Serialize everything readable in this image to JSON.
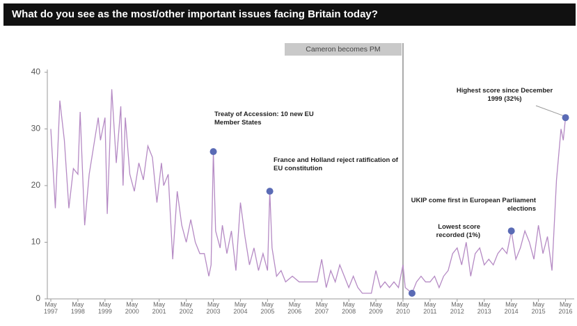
{
  "chart_data": {
    "type": "line",
    "title": "What do you see as the most/other important issues facing Britain today?",
    "x": [
      "1997-05",
      "1997-07",
      "1997-09",
      "1997-11",
      "1998-01",
      "1998-03",
      "1998-05",
      "1998-06",
      "1998-08",
      "1998-10",
      "1998-12",
      "1999-02",
      "1999-03",
      "1999-05",
      "1999-06",
      "1999-08",
      "1999-10",
      "1999-12",
      "2000-01",
      "2000-02",
      "2000-04",
      "2000-06",
      "2000-08",
      "2000-10",
      "2000-12",
      "2001-02",
      "2001-04",
      "2001-06",
      "2001-07",
      "2001-09",
      "2001-11",
      "2002-01",
      "2002-03",
      "2002-05",
      "2002-07",
      "2002-09",
      "2002-11",
      "2003-01",
      "2003-03",
      "2003-04",
      "2003-05",
      "2003-06",
      "2003-08",
      "2003-09",
      "2003-11",
      "2004-01",
      "2004-03",
      "2004-05",
      "2004-07",
      "2004-09",
      "2004-11",
      "2005-01",
      "2005-03",
      "2005-05",
      "2005-06",
      "2005-07",
      "2005-09",
      "2005-11",
      "2006-01",
      "2006-04",
      "2006-07",
      "2006-10",
      "2007-01",
      "2007-03",
      "2007-05",
      "2007-07",
      "2007-09",
      "2007-11",
      "2008-01",
      "2008-03",
      "2008-05",
      "2008-07",
      "2008-09",
      "2008-11",
      "2009-01",
      "2009-03",
      "2009-05",
      "2009-07",
      "2009-09",
      "2009-11",
      "2010-01",
      "2010-03",
      "2010-05",
      "2010-06",
      "2010-09",
      "2010-11",
      "2011-01",
      "2011-03",
      "2011-05",
      "2011-07",
      "2011-09",
      "2011-11",
      "2012-01",
      "2012-03",
      "2012-05",
      "2012-07",
      "2012-09",
      "2012-11",
      "2013-01",
      "2013-03",
      "2013-05",
      "2013-07",
      "2013-09",
      "2013-11",
      "2014-01",
      "2014-03",
      "2014-05",
      "2014-07",
      "2014-09",
      "2014-11",
      "2015-01",
      "2015-03",
      "2015-05",
      "2015-07",
      "2015-09",
      "2015-11",
      "2016-01",
      "2016-03",
      "2016-04",
      "2016-05"
    ],
    "series": [
      {
        "color": "#b58ac4",
        "values": [
          30,
          16,
          35,
          28,
          16,
          23,
          22,
          33,
          13,
          22,
          27,
          32,
          28,
          32,
          15,
          37,
          24,
          34,
          20,
          32,
          22,
          19,
          24,
          21,
          27,
          25,
          17,
          24,
          20,
          22,
          7,
          19,
          13,
          10,
          14,
          10,
          8,
          8,
          4,
          6,
          26,
          12,
          9,
          13,
          8,
          12,
          5,
          17,
          11,
          6,
          9,
          5,
          8,
          5,
          19,
          9,
          4,
          5,
          3,
          4,
          3,
          3,
          3,
          3,
          7,
          2,
          5,
          3,
          6,
          4,
          2,
          4,
          2,
          1,
          1,
          1,
          5,
          2,
          3,
          2,
          3,
          2,
          6,
          2,
          1,
          3,
          4,
          3,
          3,
          4,
          2,
          4,
          5,
          8,
          9,
          6,
          10,
          4,
          8,
          9,
          6,
          7,
          6,
          8,
          9,
          8,
          12,
          7,
          9,
          12,
          10,
          7,
          13,
          8,
          11,
          5,
          21,
          30,
          28,
          32
        ]
      }
    ],
    "xlim": [
      "1997-05",
      "2016-07"
    ],
    "ylim": [
      0,
      40
    ],
    "yticks": [
      0,
      10,
      20,
      30,
      40
    ],
    "xticks": [
      {
        "value": "1997-05",
        "label": "May 1997"
      },
      {
        "value": "1998-05",
        "label": "May 1998"
      },
      {
        "value": "1999-05",
        "label": "May 1999"
      },
      {
        "value": "2000-05",
        "label": "May 2000"
      },
      {
        "value": "2001-05",
        "label": "May 2001"
      },
      {
        "value": "2002-05",
        "label": "May 2002"
      },
      {
        "value": "2003-05",
        "label": "May 2003"
      },
      {
        "value": "2004-05",
        "label": "May 2004"
      },
      {
        "value": "2005-05",
        "label": "May 2005"
      },
      {
        "value": "2006-05",
        "label": "May 2006"
      },
      {
        "value": "2007-05",
        "label": "May 2007"
      },
      {
        "value": "2008-05",
        "label": "May 2008"
      },
      {
        "value": "2009-05",
        "label": "May 2009"
      },
      {
        "value": "2010-05",
        "label": "May 2010"
      },
      {
        "value": "2011-05",
        "label": "May 2011"
      },
      {
        "value": "2012-05",
        "label": "May 2012"
      },
      {
        "value": "2013-05",
        "label": "May 2013"
      },
      {
        "value": "2014-05",
        "label": "May 2014"
      },
      {
        "value": "2015-05",
        "label": "May 2015"
      },
      {
        "value": "2016-05",
        "label": "May 2016"
      }
    ],
    "events": [
      {
        "x": "2010-05",
        "label": "Cameron becomes PM"
      }
    ],
    "annotations": [
      {
        "x": "2003-05",
        "value": 26,
        "text": "Treaty of Accession: 10 new EU Member States"
      },
      {
        "x": "2005-06",
        "value": 19,
        "text": "France and Holland reject ratification of EU constitution"
      },
      {
        "x": "2010-09",
        "value": 1,
        "text": "Lowest score recorded (1%)"
      },
      {
        "x": "2014-05",
        "value": 12,
        "text": "UKIP come first in European Parliament elections"
      },
      {
        "x": "2016-05",
        "value": 32,
        "text": "Highest score since December 1999 (32%)"
      }
    ],
    "marker_color": "#5a6bb5"
  }
}
